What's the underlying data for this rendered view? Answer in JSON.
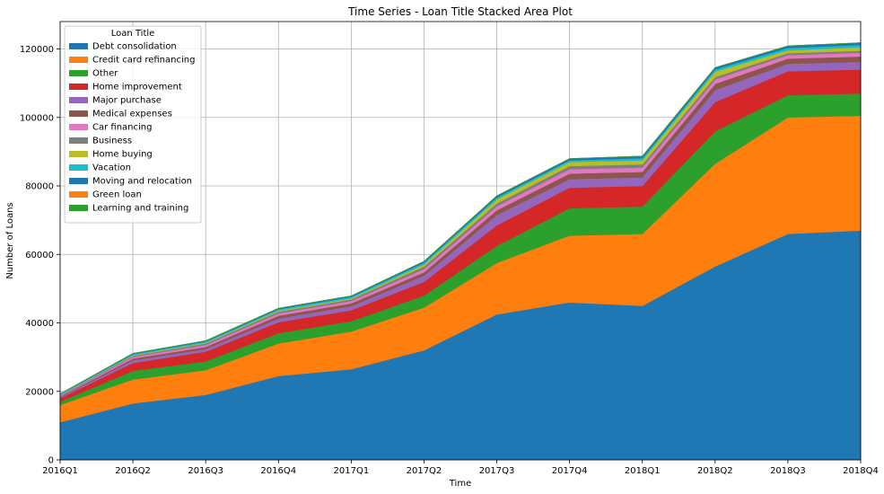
{
  "chart_data": {
    "type": "area",
    "stacked": true,
    "title": "Time Series - Loan Title Stacked Area Plot",
    "xlabel": "Time",
    "ylabel": "Number of Loans",
    "ylim": [
      0,
      128000
    ],
    "yticks": [
      0,
      20000,
      40000,
      60000,
      80000,
      100000,
      120000
    ],
    "grid": true,
    "legend_title": "Loan Title",
    "legend_position": "top-left",
    "categories": [
      "2016Q1",
      "2016Q2",
      "2016Q3",
      "2016Q4",
      "2017Q1",
      "2017Q2",
      "2017Q3",
      "2017Q4",
      "2018Q1",
      "2018Q2",
      "2018Q3",
      "2018Q4"
    ],
    "series": [
      {
        "name": "Debt consolidation",
        "color": "#1f77b4",
        "values": [
          11000,
          16500,
          19000,
          24500,
          26500,
          32000,
          42500,
          46000,
          45000,
          56500,
          66000,
          67000
        ]
      },
      {
        "name": "Credit card refinancing",
        "color": "#ff7f0e",
        "values": [
          5000,
          7000,
          7200,
          9500,
          11000,
          12500,
          15000,
          19500,
          21000,
          30000,
          34000,
          33500
        ]
      },
      {
        "name": "Other",
        "color": "#2ca02c",
        "values": [
          1000,
          2500,
          2600,
          3000,
          3000,
          3500,
          5000,
          8000,
          8000,
          9500,
          6500,
          6500
        ]
      },
      {
        "name": "Home improvement",
        "color": "#d62728",
        "values": [
          1000,
          2300,
          2800,
          3200,
          3200,
          4000,
          6000,
          6000,
          6000,
          8500,
          7000,
          7000
        ]
      },
      {
        "name": "Major purchase",
        "color": "#9467bd",
        "values": [
          300,
          800,
          800,
          1100,
          1200,
          1800,
          3000,
          2500,
          2500,
          3500,
          2200,
          2200
        ]
      },
      {
        "name": "Medical expenses",
        "color": "#8c564b",
        "values": [
          200,
          500,
          600,
          800,
          800,
          1000,
          1400,
          1600,
          1600,
          1800,
          1500,
          1600
        ]
      },
      {
        "name": "Car financing",
        "color": "#e377c2",
        "values": [
          200,
          500,
          600,
          700,
          700,
          900,
          1200,
          1300,
          1300,
          1300,
          1000,
          1100
        ]
      },
      {
        "name": "Business",
        "color": "#7f7f7f",
        "values": [
          200,
          300,
          400,
          500,
          500,
          800,
          800,
          900,
          900,
          700,
          600,
          600
        ]
      },
      {
        "name": "Home buying",
        "color": "#bcbd22",
        "values": [
          100,
          200,
          200,
          300,
          300,
          600,
          1200,
          1200,
          1200,
          1600,
          800,
          1000
        ]
      },
      {
        "name": "Vacation",
        "color": "#17becf",
        "values": [
          200,
          300,
          400,
          400,
          400,
          500,
          500,
          500,
          600,
          600,
          700,
          700
        ]
      },
      {
        "name": "Moving and relocation",
        "color": "#1f77b4",
        "values": [
          100,
          200,
          200,
          300,
          300,
          400,
          500,
          500,
          600,
          600,
          600,
          600
        ]
      },
      {
        "name": "Green loan",
        "color": "#ff7f0e",
        "values": [
          0,
          0,
          0,
          0,
          0,
          0,
          0,
          0,
          0,
          0,
          10,
          10
        ]
      },
      {
        "name": "Learning and training",
        "color": "#2ca02c",
        "values": [
          0,
          0,
          0,
          0,
          0,
          0,
          0,
          0,
          0,
          0,
          10,
          10
        ]
      }
    ]
  }
}
